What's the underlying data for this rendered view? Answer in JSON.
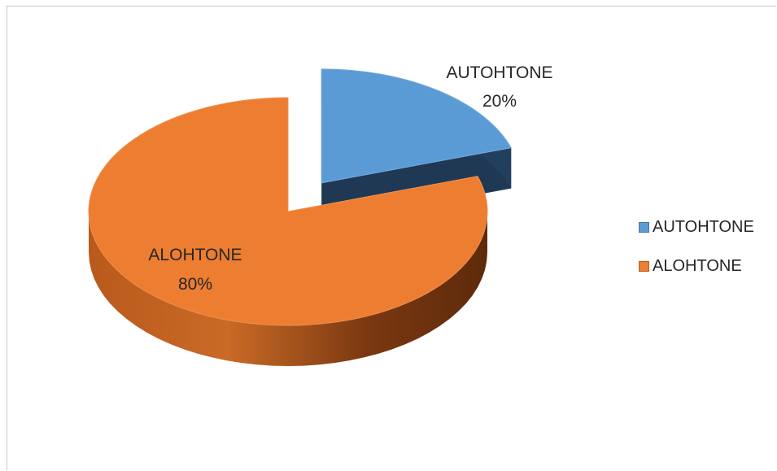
{
  "chart_data": {
    "type": "pie",
    "title": "",
    "categories": [
      "AUTOHTONE",
      "ALOHTONE"
    ],
    "values": [
      20,
      80
    ],
    "unit": "%",
    "exploded": "AUTOHTONE",
    "colors": {
      "AUTOHTONE": "#5b9bd5",
      "ALOHTONE": "#ed7d31"
    },
    "data_labels": [
      {
        "category": "AUTOHTONE",
        "value": "20%"
      },
      {
        "category": "ALOHTONE",
        "value": "80%"
      }
    ],
    "legend": {
      "position": "right",
      "entries": [
        "AUTOHTONE",
        "ALOHTONE"
      ]
    }
  }
}
